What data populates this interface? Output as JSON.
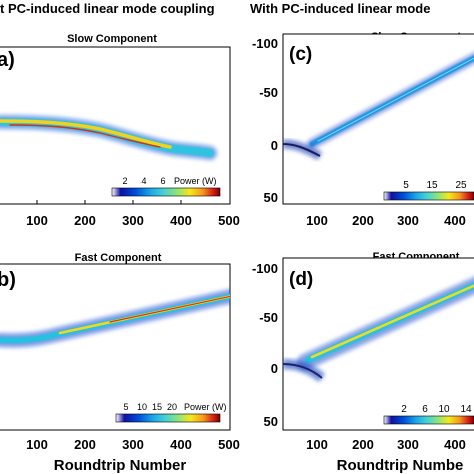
{
  "headings": {
    "left": "t PC-induced linear mode coupling",
    "right": "With PC-induced linear mode"
  },
  "colors": {
    "colormap": [
      "#ffffff",
      "#1010a0",
      "#0050d8",
      "#1fa7e8",
      "#48d2d2",
      "#8fe37a",
      "#f6e71e",
      "#f39a1c",
      "#d8261a",
      "#7e0000"
    ],
    "axis": "#000000",
    "background": "#ffffff"
  },
  "chart_data": [
    {
      "type": "heatmap",
      "panel_label": "a)",
      "title": "Slow Component",
      "xlabel": "",
      "xlim": [
        0,
        500
      ],
      "x_ticks": [
        "100",
        "200",
        "300",
        "400",
        "500"
      ],
      "colorbar": {
        "ticks": [
          "2",
          "4",
          "6"
        ],
        "label": "Power (W)"
      },
      "traces": [
        {
          "x": [
            0,
            80,
            160,
            260,
            280
          ],
          "y": [
            0,
            2,
            6,
            12,
            14
          ],
          "peak_w": 6
        }
      ]
    },
    {
      "type": "heatmap",
      "panel_label": "(c)",
      "title": "Slow Component",
      "xlabel": "",
      "ylim": [
        -100,
        50
      ],
      "y_ticks": [
        "-100",
        "-50",
        "0",
        "50"
      ],
      "x_ticks": [
        "100",
        "200",
        "300",
        "400"
      ],
      "colorbar": {
        "ticks": [
          "5",
          "15",
          "25"
        ],
        "label": ""
      },
      "traces": [
        {
          "x": [
            60,
            500
          ],
          "y": [
            0,
            -110
          ],
          "peak_w": 20
        },
        {
          "x": [
            0,
            40,
            80
          ],
          "y": [
            0,
            4,
            12
          ],
          "peak_w": 8
        }
      ]
    },
    {
      "type": "heatmap",
      "panel_label": "b)",
      "title": "Fast Component",
      "xlabel": "Roundtrip Number",
      "xlim": [
        0,
        500
      ],
      "x_ticks": [
        "100",
        "200",
        "300",
        "400",
        "500"
      ],
      "colorbar": {
        "ticks": [
          "5",
          "10",
          "15",
          "20"
        ],
        "label": "Power (W)"
      },
      "traces": [
        {
          "x": [
            0,
            50,
            500
          ],
          "y": [
            24,
            20,
            -40
          ],
          "peak_w": 20
        }
      ]
    },
    {
      "type": "heatmap",
      "panel_label": "(d)",
      "title": "Fast Component",
      "xlabel": "Roundtrip Numbe",
      "ylim": [
        -100,
        50
      ],
      "y_ticks": [
        "-100",
        "-50",
        "0",
        "50"
      ],
      "x_ticks": [
        "100",
        "200",
        "300",
        "400"
      ],
      "colorbar": {
        "ticks": [
          "2",
          "6",
          "10",
          "14"
        ],
        "label": ""
      },
      "traces": [
        {
          "x": [
            60,
            500
          ],
          "y": [
            -5,
            -110
          ],
          "peak_w": 14
        },
        {
          "x": [
            0,
            40,
            100
          ],
          "y": [
            0,
            3,
            12
          ],
          "peak_w": 6
        }
      ]
    }
  ]
}
